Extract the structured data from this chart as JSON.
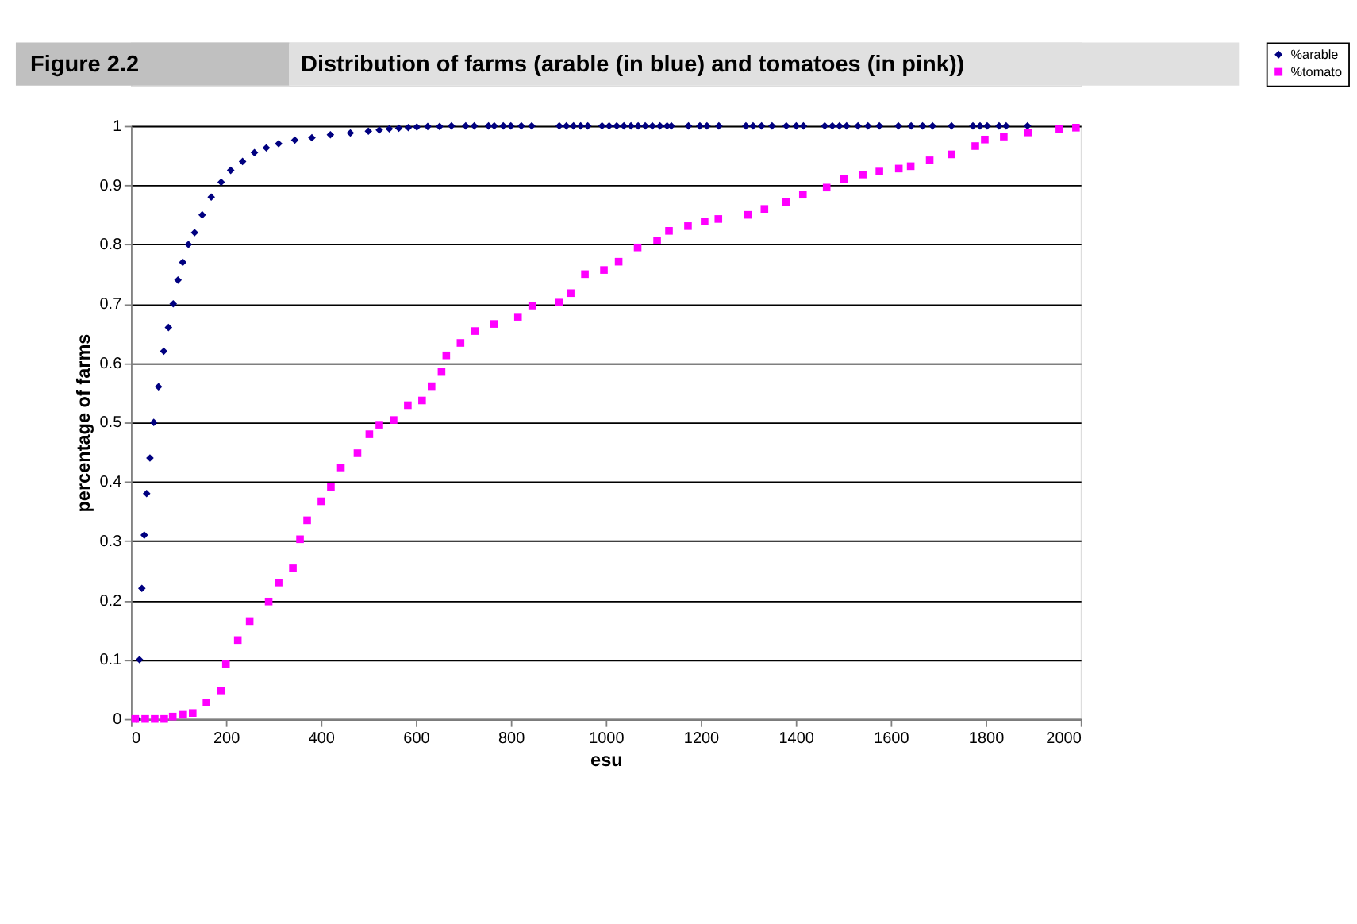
{
  "chart_data": {
    "type": "scatter",
    "title": "Distribution of farms (arable (in blue) and tomatoes (in pink))",
    "annotations": [
      "Figure 2.2"
    ],
    "xlabel": "esu",
    "ylabel": "percentage of farms",
    "xlim": [
      0,
      2000
    ],
    "xticks": [
      0,
      200,
      400,
      600,
      800,
      1000,
      1200,
      1400,
      1600,
      1800,
      2000
    ],
    "ylim": [
      0,
      1
    ],
    "yticks": [
      0,
      0.1,
      0.2,
      0.3,
      0.4,
      0.5,
      0.6,
      0.7,
      0.8,
      0.9,
      1
    ],
    "grid": "y",
    "legend": "right",
    "series": [
      {
        "name": "%arable",
        "color": "#000080",
        "marker": "diamond",
        "x": [
          13,
          18,
          23,
          28,
          33,
          40,
          48,
          58,
          69,
          79,
          89,
          99,
          109,
          121,
          134,
          150,
          169,
          190,
          210,
          235,
          260,
          285,
          311,
          345,
          381,
          420,
          462,
          500,
          523,
          544,
          564,
          584,
          602,
          625,
          650,
          675,
          705,
          723,
          753,
          765,
          784,
          800,
          822,
          844,
          902,
          917,
          932,
          947,
          962,
          992,
          1007,
          1023,
          1038,
          1053,
          1068,
          1083,
          1098,
          1114,
          1129,
          1138,
          1174,
          1198,
          1213,
          1238,
          1295,
          1310,
          1328,
          1350,
          1380,
          1401,
          1416,
          1461,
          1477,
          1492,
          1507,
          1531,
          1552,
          1576,
          1616,
          1643,
          1667,
          1688,
          1728,
          1773,
          1788,
          1803,
          1828,
          1843,
          1888
        ],
        "values": [
          0,
          0.1,
          0.22,
          0.31,
          0.38,
          0.44,
          0.5,
          0.56,
          0.62,
          0.66,
          0.7,
          0.74,
          0.77,
          0.8,
          0.82,
          0.85,
          0.88,
          0.905,
          0.925,
          0.94,
          0.955,
          0.963,
          0.97,
          0.976,
          0.98,
          0.985,
          0.988,
          0.991,
          0.993,
          0.995,
          0.996,
          0.997,
          0.998,
          0.999,
          0.999,
          1,
          1,
          1,
          1,
          1,
          1,
          1,
          1,
          1,
          1,
          1,
          1,
          1,
          1,
          1,
          1,
          1,
          1,
          1,
          1,
          1,
          1,
          1,
          1,
          1,
          1,
          1,
          1,
          1,
          1,
          1,
          1,
          1,
          1,
          1,
          1,
          1,
          1,
          1,
          1,
          1,
          1,
          1,
          1,
          1,
          1,
          1,
          1,
          1,
          1,
          1,
          1,
          1,
          1
        ]
      },
      {
        "name": "%tomato",
        "color": "#ff00ff",
        "marker": "square",
        "x": [
          9,
          30,
          50,
          70,
          88,
          110,
          130,
          159,
          190,
          200,
          225,
          250,
          290,
          311,
          341,
          356,
          371,
          401,
          421,
          442,
          477,
          502,
          523,
          553,
          583,
          613,
          633,
          654,
          664,
          694,
          724,
          765,
          815,
          845,
          901,
          926,
          956,
          996,
          1027,
          1067,
          1108,
          1133,
          1173,
          1208,
          1237,
          1299,
          1334,
          1380,
          1415,
          1465,
          1501,
          1541,
          1576,
          1617,
          1642,
          1682,
          1728,
          1778,
          1798,
          1838,
          1889,
          1955,
          1990
        ],
        "values": [
          0,
          0,
          0,
          0,
          0.004,
          0.007,
          0.01,
          0.028,
          0.048,
          0.093,
          0.133,
          0.165,
          0.198,
          0.23,
          0.254,
          0.303,
          0.335,
          0.367,
          0.391,
          0.424,
          0.448,
          0.48,
          0.496,
          0.504,
          0.529,
          0.537,
          0.561,
          0.585,
          0.613,
          0.634,
          0.654,
          0.666,
          0.678,
          0.697,
          0.702,
          0.718,
          0.75,
          0.757,
          0.771,
          0.795,
          0.807,
          0.823,
          0.831,
          0.839,
          0.843,
          0.85,
          0.86,
          0.872,
          0.884,
          0.896,
          0.91,
          0.918,
          0.923,
          0.928,
          0.932,
          0.942,
          0.952,
          0.966,
          0.977,
          0.982,
          0.989,
          0.995,
          0.997
        ]
      }
    ]
  }
}
